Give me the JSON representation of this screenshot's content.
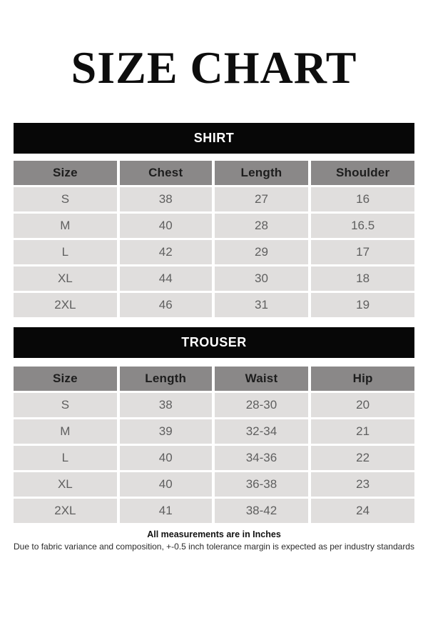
{
  "page": {
    "title": "SIZE CHART"
  },
  "tables": [
    {
      "name": "SHIRT",
      "columns": [
        "Size",
        "Chest",
        "Length",
        "Shoulder"
      ],
      "rows": [
        [
          "S",
          "38",
          "27",
          "16"
        ],
        [
          "M",
          "40",
          "28",
          "16.5"
        ],
        [
          "L",
          "42",
          "29",
          "17"
        ],
        [
          "XL",
          "44",
          "30",
          "18"
        ],
        [
          "2XL",
          "46",
          "31",
          "19"
        ]
      ]
    },
    {
      "name": "TROUSER",
      "columns": [
        "Size",
        "Length",
        "Waist",
        "Hip"
      ],
      "rows": [
        [
          "S",
          "38",
          "28-30",
          "20"
        ],
        [
          "M",
          "39",
          "32-34",
          "21"
        ],
        [
          "L",
          "40",
          "34-36",
          "22"
        ],
        [
          "XL",
          "40",
          "36-38",
          "23"
        ],
        [
          "2XL",
          "41",
          "38-42",
          "24"
        ]
      ]
    }
  ],
  "footer": {
    "bold_line": "All measurements are in Inches",
    "note_line": "Due to fabric variance and composition, +-0.5 inch tolerance margin is expected as per industry standards"
  },
  "colors": {
    "band_background": "#070707",
    "band_text": "#ffffff",
    "header_cell_background": "#8a8888",
    "header_cell_text": "#1d1d1d",
    "data_cell_background": "#e0dedd",
    "data_cell_text": "#5f5f5f",
    "page_background": "#ffffff",
    "title_text": "#0d0d0d"
  }
}
